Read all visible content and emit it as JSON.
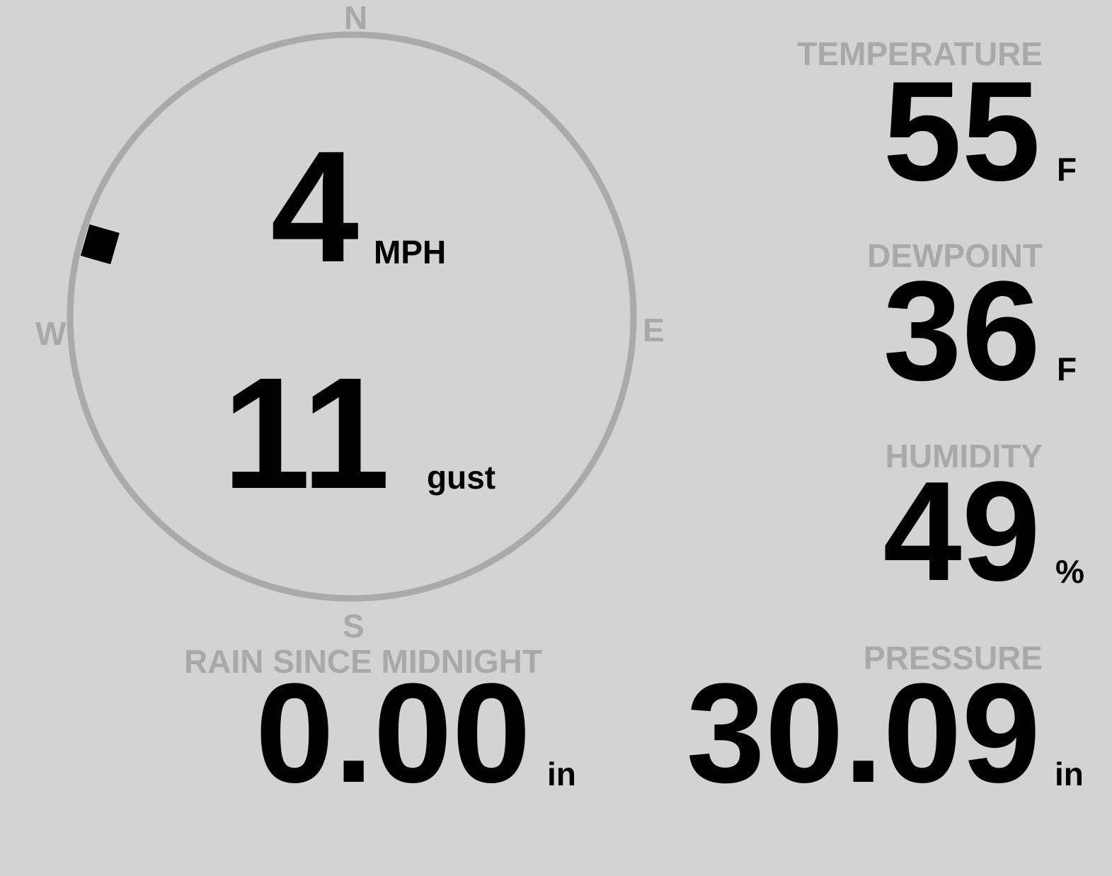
{
  "wind": {
    "speed": "4",
    "speed_unit": "MPH",
    "gust": "11",
    "gust_label": "gust",
    "direction_degrees": 286,
    "compass": {
      "n": "N",
      "e": "E",
      "s": "S",
      "w": "W"
    },
    "ring_color": "#aaaaaa",
    "marker_color": "#000000"
  },
  "temperature": {
    "label": "TEMPERATURE",
    "value": "55",
    "unit": "F"
  },
  "dewpoint": {
    "label": "DEWPOINT",
    "value": "36",
    "unit": "F"
  },
  "humidity": {
    "label": "HUMIDITY",
    "value": "49",
    "unit": "%"
  },
  "pressure": {
    "label": "PRESSURE",
    "value": "30.09",
    "unit": "in"
  },
  "rain": {
    "label": "RAIN SINCE MIDNIGHT",
    "value": "0.00",
    "unit": "in"
  },
  "colors": {
    "background": "#d3d3d3",
    "label": "#a9a9a9",
    "value": "#000000"
  }
}
